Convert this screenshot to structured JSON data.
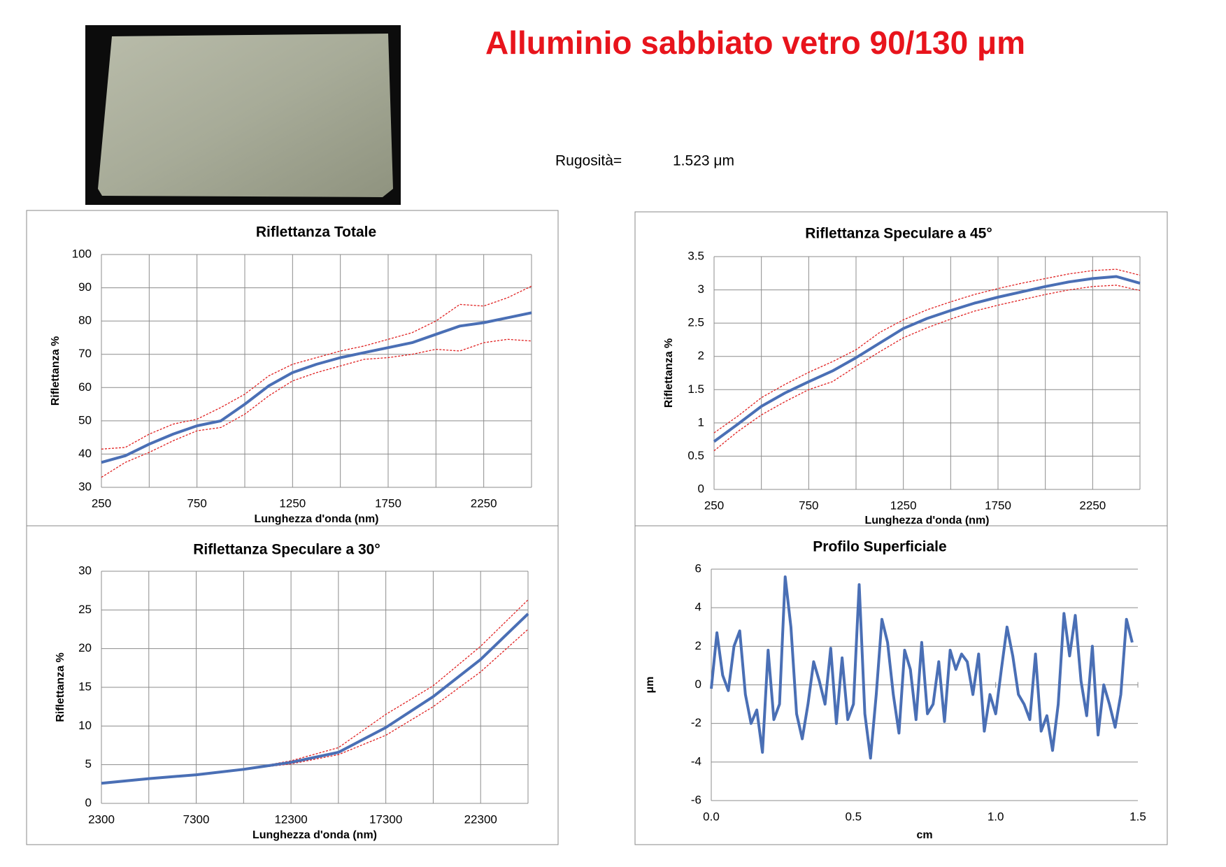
{
  "title": "Alluminio sabbiato vetro 90/130 μm",
  "roughness_label": "Rugosità=",
  "roughness_value": "1.523 μm",
  "chart_data": [
    {
      "type": "line",
      "title": "Riflettanza Totale",
      "x_label": "Lunghezza d'onda (nm)",
      "y_label": "Riflettanza %",
      "x": [
        250,
        375,
        500,
        625,
        750,
        875,
        1000,
        1125,
        1250,
        1375,
        1500,
        1625,
        1750,
        1875,
        2000,
        2125,
        2250,
        2375,
        2500
      ],
      "series": [
        {
          "color": "#4a6fb5",
          "dashed": false,
          "values": [
            37.5,
            39.5,
            43,
            46,
            48.5,
            50,
            55,
            60.5,
            64.5,
            67,
            69,
            70.5,
            72,
            73.5,
            76,
            78.5,
            79.5,
            81,
            82.5
          ]
        },
        {
          "color": "#e02020",
          "dashed": true,
          "values": [
            41.5,
            42,
            46,
            49,
            50.5,
            54,
            58,
            63.5,
            67,
            69,
            71,
            72.5,
            74.5,
            76.5,
            80,
            85,
            84.5,
            87,
            90.5
          ]
        },
        {
          "color": "#e02020",
          "dashed": true,
          "values": [
            33,
            37.5,
            40.5,
            44,
            47,
            48,
            52,
            57.5,
            62,
            64.5,
            66.5,
            68.5,
            69,
            70,
            71.5,
            71,
            73.5,
            74.5,
            74
          ]
        }
      ],
      "xlim": [
        250,
        2500
      ],
      "xticks": [
        250,
        750,
        1250,
        1750,
        2250
      ],
      "xgrid": [
        500,
        1000,
        1500,
        2000,
        2500
      ],
      "ylim": [
        30,
        100
      ],
      "yticks": [
        30,
        40,
        50,
        60,
        70,
        80,
        90,
        100
      ],
      "grid": true
    },
    {
      "type": "line",
      "title": "Riflettanza Speculare a 45°",
      "x_label": "Lunghezza d'onda (nm)",
      "y_label": "Riflettanza %",
      "x": [
        250,
        375,
        500,
        625,
        750,
        875,
        1000,
        1125,
        1250,
        1375,
        1500,
        1625,
        1750,
        1875,
        2000,
        2125,
        2250,
        2375,
        2500
      ],
      "series": [
        {
          "color": "#4a6fb5",
          "dashed": false,
          "values": [
            0.72,
            0.98,
            1.25,
            1.45,
            1.62,
            1.78,
            1.98,
            2.2,
            2.42,
            2.57,
            2.69,
            2.8,
            2.89,
            2.97,
            3.05,
            3.12,
            3.17,
            3.2,
            3.1
          ]
        },
        {
          "color": "#e02020",
          "dashed": true,
          "values": [
            0.85,
            1.1,
            1.38,
            1.58,
            1.76,
            1.92,
            2.1,
            2.36,
            2.55,
            2.7,
            2.82,
            2.93,
            3.02,
            3.1,
            3.17,
            3.24,
            3.29,
            3.31,
            3.22
          ]
        },
        {
          "color": "#e02020",
          "dashed": true,
          "values": [
            0.58,
            0.87,
            1.12,
            1.32,
            1.5,
            1.62,
            1.85,
            2.07,
            2.28,
            2.43,
            2.56,
            2.68,
            2.77,
            2.85,
            2.93,
            3.0,
            3.05,
            3.07,
            2.99
          ]
        }
      ],
      "xlim": [
        250,
        2500
      ],
      "xticks": [
        250,
        750,
        1250,
        1750,
        2250
      ],
      "xgrid": [
        500,
        1000,
        1500,
        2000,
        2500
      ],
      "ylim": [
        0,
        3.5
      ],
      "yticks": [
        0,
        0.5,
        1,
        1.5,
        2,
        2.5,
        3,
        3.5
      ],
      "grid": true
    },
    {
      "type": "line",
      "title": "Riflettanza Speculare a 30°",
      "x_label": "Lunghezza d'onda (nm)",
      "y_label": "Riflettanza %",
      "x": [
        2300,
        4800,
        7300,
        9800,
        12300,
        14800,
        17300,
        19800,
        22300,
        24800
      ],
      "series": [
        {
          "color": "#4a6fb5",
          "dashed": false,
          "values": [
            2.6,
            3.2,
            3.7,
            4.4,
            5.3,
            6.6,
            9.8,
            13.8,
            18.6,
            24.5
          ]
        },
        {
          "color": "#e02020",
          "dashed": true,
          "values": [
            2.6,
            3.2,
            3.7,
            4.4,
            5.5,
            7.2,
            11.5,
            15.2,
            20.3,
            26.3
          ]
        },
        {
          "color": "#e02020",
          "dashed": true,
          "values": [
            2.6,
            3.2,
            3.7,
            4.4,
            5.1,
            6.3,
            8.8,
            12.5,
            17,
            22.5
          ]
        }
      ],
      "xlim": [
        2300,
        24800
      ],
      "xticks": [
        2300,
        7300,
        12300,
        17300,
        22300
      ],
      "xgrid": [
        4800,
        9800,
        14800,
        19800,
        24800
      ],
      "ylim": [
        0,
        30
      ],
      "yticks": [
        0,
        5,
        10,
        15,
        20,
        25,
        30
      ],
      "grid": true
    },
    {
      "type": "line",
      "title": "Profilo Superficiale",
      "x_label": "cm",
      "y_label": "μm",
      "x": [
        0,
        0.02,
        0.04,
        0.06,
        0.08,
        0.1,
        0.12,
        0.14,
        0.16,
        0.18,
        0.2,
        0.22,
        0.24,
        0.26,
        0.28,
        0.3,
        0.32,
        0.34,
        0.36,
        0.38,
        0.4,
        0.42,
        0.44,
        0.46,
        0.48,
        0.5,
        0.52,
        0.54,
        0.56,
        0.58,
        0.6,
        0.62,
        0.64,
        0.66,
        0.68,
        0.7,
        0.72,
        0.74,
        0.76,
        0.78,
        0.8,
        0.82,
        0.84,
        0.86,
        0.88,
        0.9,
        0.92,
        0.94,
        0.96,
        0.98,
        1,
        1.02,
        1.04,
        1.06,
        1.08,
        1.1,
        1.12,
        1.14,
        1.16,
        1.18,
        1.2,
        1.22,
        1.24,
        1.26,
        1.28,
        1.3,
        1.32,
        1.34,
        1.36,
        1.38,
        1.4,
        1.42,
        1.44,
        1.46,
        1.48
      ],
      "series": [
        {
          "color": "#4a6fb5",
          "dashed": false,
          "values": [
            -0.2,
            2.7,
            0.5,
            -0.3,
            2.0,
            2.8,
            -0.5,
            -2.0,
            -1.3,
            -3.5,
            1.8,
            -1.8,
            -1.0,
            5.6,
            3.0,
            -1.5,
            -2.8,
            -1.0,
            1.2,
            0.2,
            -1.0,
            1.9,
            -2.0,
            1.4,
            -1.8,
            -1.0,
            5.2,
            -1.5,
            -3.8,
            -0.5,
            3.4,
            2.2,
            -0.5,
            -2.5,
            1.8,
            0.8,
            -1.8,
            2.2,
            -1.5,
            -1.0,
            1.2,
            -1.9,
            1.8,
            0.8,
            1.6,
            1.2,
            -0.5,
            1.6,
            -2.4,
            -0.5,
            -1.5,
            0.8,
            3.0,
            1.5,
            -0.5,
            -1.0,
            -1.8,
            1.6,
            -2.4,
            -1.6,
            -3.4,
            -1.0,
            3.7,
            1.5,
            3.6,
            0.2,
            -1.6,
            2.0,
            -2.6,
            0.0,
            -1.0,
            -2.2,
            -0.5,
            3.4,
            2.2
          ]
        }
      ],
      "xlim": [
        0,
        1.5
      ],
      "xticks": [
        {
          "value": 0,
          "label": "0.0"
        },
        {
          "value": 0.5,
          "label": "0.5"
        },
        {
          "value": 1,
          "label": "1.0"
        },
        {
          "value": 1.5,
          "label": "1.5"
        }
      ],
      "ylim": [
        -6,
        6
      ],
      "yticks": [
        -6,
        -4,
        -2,
        0,
        2,
        4,
        6
      ],
      "grid": true,
      "x_axis_at_zero": true
    }
  ]
}
